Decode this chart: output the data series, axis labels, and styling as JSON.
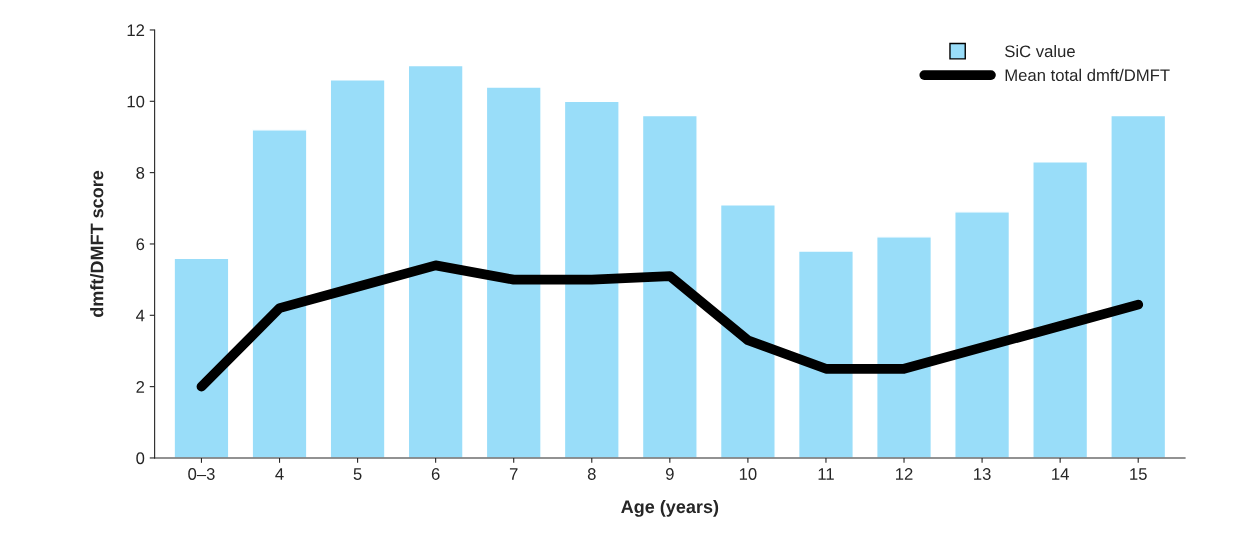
{
  "chart_data": {
    "type": "bar",
    "xlabel": "Age (years)",
    "ylabel": "dmft/DMFT score",
    "categories": [
      "0–3",
      "4",
      "5",
      "6",
      "7",
      "8",
      "9",
      "10",
      "11",
      "12",
      "13",
      "14",
      "15"
    ],
    "series": [
      {
        "name": "SiC value",
        "color": "#99ddf9",
        "values": [
          5.6,
          9.2,
          10.6,
          11.0,
          10.4,
          10.0,
          9.6,
          7.1,
          5.8,
          6.2,
          6.9,
          8.3,
          9.6
        ]
      },
      {
        "name": "Mean total dmft/DMFT",
        "type": "line",
        "color": "#000000",
        "values": [
          2.0,
          4.2,
          4.8,
          5.4,
          5.0,
          5.0,
          5.1,
          3.3,
          2.5,
          2.5,
          3.1,
          3.7,
          4.3
        ]
      }
    ],
    "ylim": [
      0,
      12
    ],
    "yticks": [
      0,
      2,
      4,
      6,
      8,
      10,
      12
    ],
    "grid": false,
    "legend": "top right"
  }
}
